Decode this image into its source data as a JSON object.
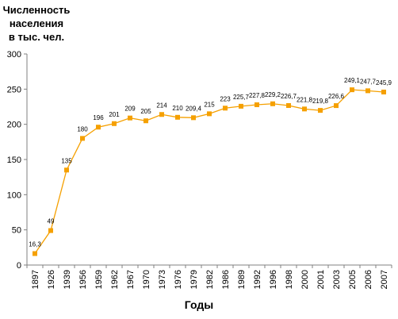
{
  "chart_data": {
    "type": "line",
    "ylabel": "Численность\nнаселения\nв тыс. чел.",
    "xlabel": "Годы",
    "ylim": [
      0,
      300
    ],
    "yticks": [
      0,
      50,
      100,
      150,
      200,
      250,
      300
    ],
    "grid": false,
    "legend": "none",
    "categories": [
      "1897",
      "1926",
      "1939",
      "1956",
      "1959",
      "1962",
      "1967",
      "1970",
      "1973",
      "1976",
      "1979",
      "1982",
      "1986",
      "1989",
      "1992",
      "1996",
      "1998",
      "2000",
      "2001",
      "2003",
      "2005",
      "2006",
      "2007"
    ],
    "values": [
      16.3,
      49,
      135,
      180,
      196,
      201,
      209,
      205,
      214,
      210,
      209.4,
      215,
      223,
      225.7,
      227.8,
      229.2,
      226.7,
      221.8,
      219.8,
      226.6,
      249.1,
      247.7,
      245.9
    ],
    "data_labels": [
      "16,3",
      "49",
      "135",
      "180",
      "196",
      "201",
      "209",
      "205",
      "214",
      "210",
      "209,4",
      "215",
      "223",
      "225,7",
      "227,8",
      "229,2",
      "226,7",
      "221,8",
      "219,8",
      "226,6",
      "249,1",
      "247,7",
      "245,9"
    ],
    "series_color": "#f5a000",
    "marker_color": "#f5a000"
  }
}
